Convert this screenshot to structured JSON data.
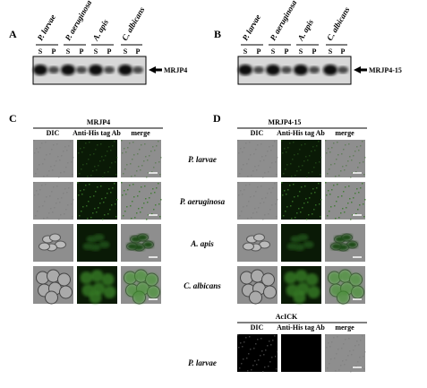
{
  "panels": {
    "A": {
      "label": "A",
      "strains": [
        "P. larvae",
        "P. aeruginosa",
        "A. apis",
        "C. albicans"
      ],
      "lanes": [
        "S",
        "P",
        "S",
        "P",
        "S",
        "P",
        "S",
        "P"
      ],
      "protein": "MRJP4"
    },
    "B": {
      "label": "B",
      "strains": [
        "P. larvae",
        "P. aeruginosa",
        "A. apis",
        "C. albicans"
      ],
      "lanes": [
        "S",
        "P",
        "S",
        "P",
        "S",
        "P",
        "S",
        "P"
      ],
      "protein": "MRJP4-15"
    },
    "C": {
      "label": "C",
      "title": "MRJP4",
      "columns": [
        "DIC",
        "Anti-His tag Ab",
        "merge"
      ]
    },
    "D": {
      "label": "D",
      "title": "MRJP4-15",
      "columns": [
        "DIC",
        "Anti-His tag Ab",
        "merge"
      ]
    },
    "control": {
      "title": "AcICK",
      "columns": [
        "DIC",
        "Anti-His tag Ab",
        "merge"
      ],
      "strain": "P. larvae"
    }
  },
  "strains": [
    "P. larvae",
    "P. aeruginosa",
    "A. apis",
    "C. albicans"
  ]
}
